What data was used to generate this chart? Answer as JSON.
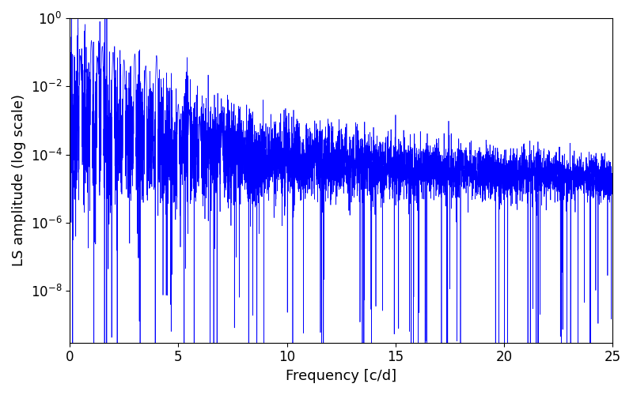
{
  "xlabel": "Frequency [c/d]",
  "ylabel": "LS amplitude (log scale)",
  "line_color": "#0000FF",
  "line_width": 0.5,
  "xlim": [
    0,
    25
  ],
  "ylim": [
    3e-10,
    1
  ],
  "freq_max": 25.0,
  "n_points": 6000,
  "seed": 12345,
  "background_color": "#ffffff",
  "tick_labelsize": 12,
  "label_fontsize": 13,
  "figsize": [
    8.0,
    5.0
  ],
  "dpi": 100
}
